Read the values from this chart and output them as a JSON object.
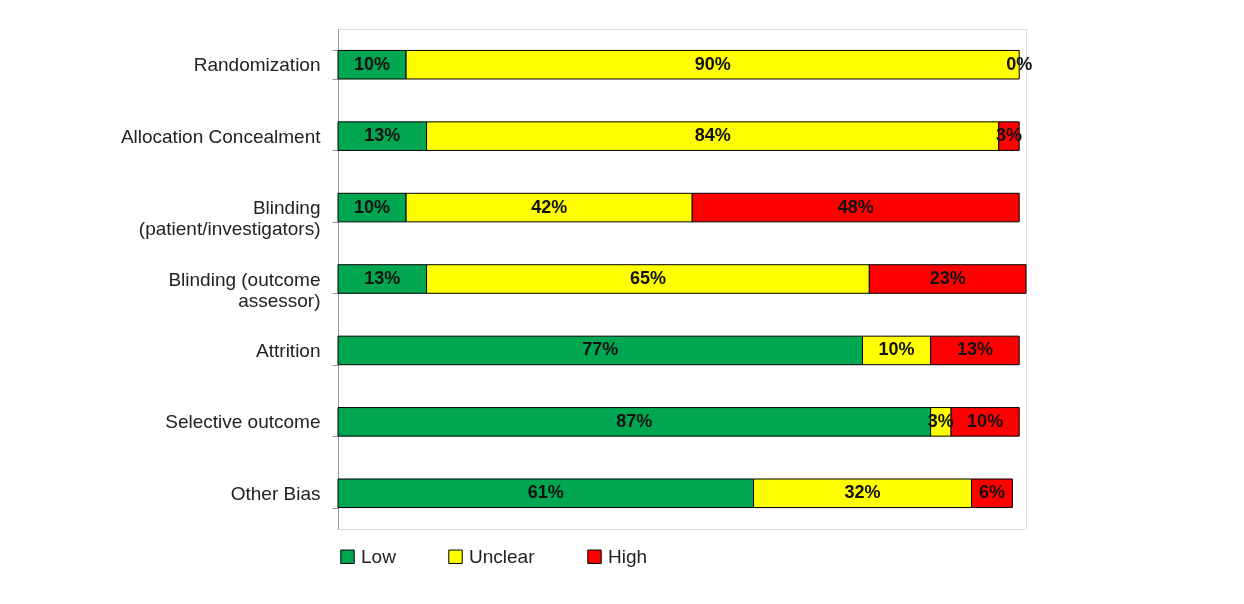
{
  "chart_data": {
    "type": "bar",
    "orientation": "horizontal",
    "stacked": true,
    "legend": "bottom left",
    "grid": false,
    "tick_labels": "y",
    "categories": [
      "Randomization",
      "Allocation Concealment",
      "Blinding\n(patient/investigators)",
      "Blinding (outcome\nassessor)",
      "Attrition",
      "Selective outcome",
      "Other Bias"
    ],
    "series": [
      {
        "name": "Low",
        "color": "#00a650",
        "values": [
          10,
          13,
          10,
          13,
          77,
          87,
          61
        ],
        "value_labels": [
          "10%",
          "13%",
          "10%",
          "13%",
          "77%",
          "87%",
          "61%"
        ]
      },
      {
        "name": "Unclear",
        "color": "#ffff00",
        "values": [
          90,
          84,
          42,
          65,
          10,
          3,
          32
        ],
        "value_labels": [
          "90%",
          "84%",
          "42%",
          "65%",
          "10%",
          "3%",
          "32%"
        ]
      },
      {
        "name": "High",
        "color": "#ff0000",
        "values": [
          0,
          3,
          48,
          23,
          13,
          10,
          6
        ],
        "value_labels": [
          "0%",
          "3%",
          "48%",
          "23%",
          "13%",
          "10%",
          "6%"
        ]
      }
    ]
  }
}
